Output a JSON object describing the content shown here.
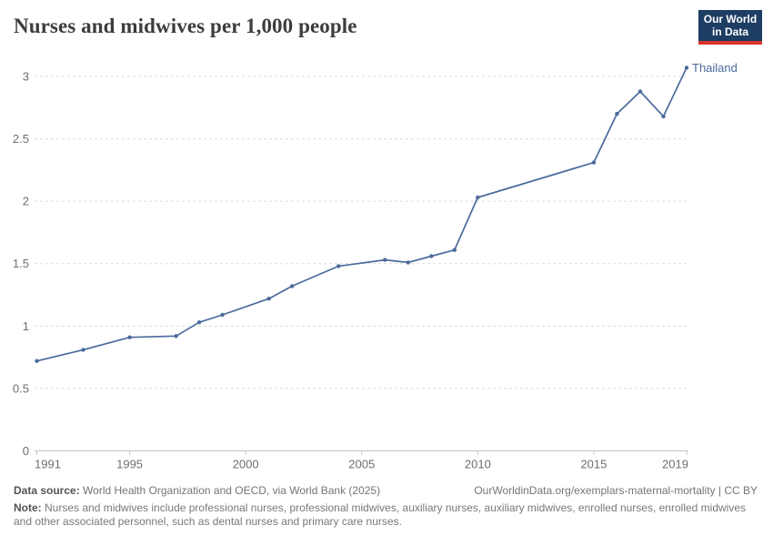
{
  "header": {
    "title": "Nurses and midwives per 1,000 people",
    "logo": {
      "line1": "Our World",
      "line2": "in Data",
      "background": "#1d3d63",
      "accent": "#d7352c"
    }
  },
  "chart_data": {
    "type": "line",
    "title": "Nurses and midwives per 1,000 people",
    "xlabel": "",
    "ylabel": "",
    "xlim": [
      1991,
      2019
    ],
    "ylim": [
      0,
      3.2
    ],
    "x_ticks": [
      1991,
      1995,
      2000,
      2005,
      2010,
      2015,
      2019
    ],
    "y_ticks": [
      0,
      0.5,
      1,
      1.5,
      2,
      2.5,
      3
    ],
    "grid": "horizontal-dashed",
    "legend": "end-of-line-label",
    "series": [
      {
        "name": "Thailand",
        "color": "#4C6A9C",
        "x": [
          1991,
          1993,
          1995,
          1997,
          1998,
          1999,
          2001,
          2002,
          2004,
          2006,
          2007,
          2008,
          2009,
          2010,
          2015,
          2016,
          2017,
          2018,
          2019
        ],
        "values": [
          0.72,
          0.81,
          0.91,
          0.92,
          1.03,
          1.09,
          1.22,
          1.32,
          1.48,
          1.53,
          1.51,
          1.56,
          1.61,
          2.03,
          2.31,
          2.7,
          2.88,
          2.68,
          3.07
        ]
      }
    ],
    "colors": {
      "grid": "#dcdcdc",
      "axis": "#c4c4c4",
      "tick_text": "#6e6e6e"
    }
  },
  "footer": {
    "data_source_label": "Data source:",
    "data_source_text": "World Health Organization and OECD, via World Bank (2025)",
    "citation": "OurWorldinData.org/exemplars-maternal-mortality | CC BY",
    "note_label": "Note:",
    "note_text": "Nurses and midwives include professional nurses, professional midwives, auxiliary nurses, auxiliary midwives, enrolled nurses, enrolled midwives and other associated personnel, such as dental nurses and primary care nurses."
  }
}
